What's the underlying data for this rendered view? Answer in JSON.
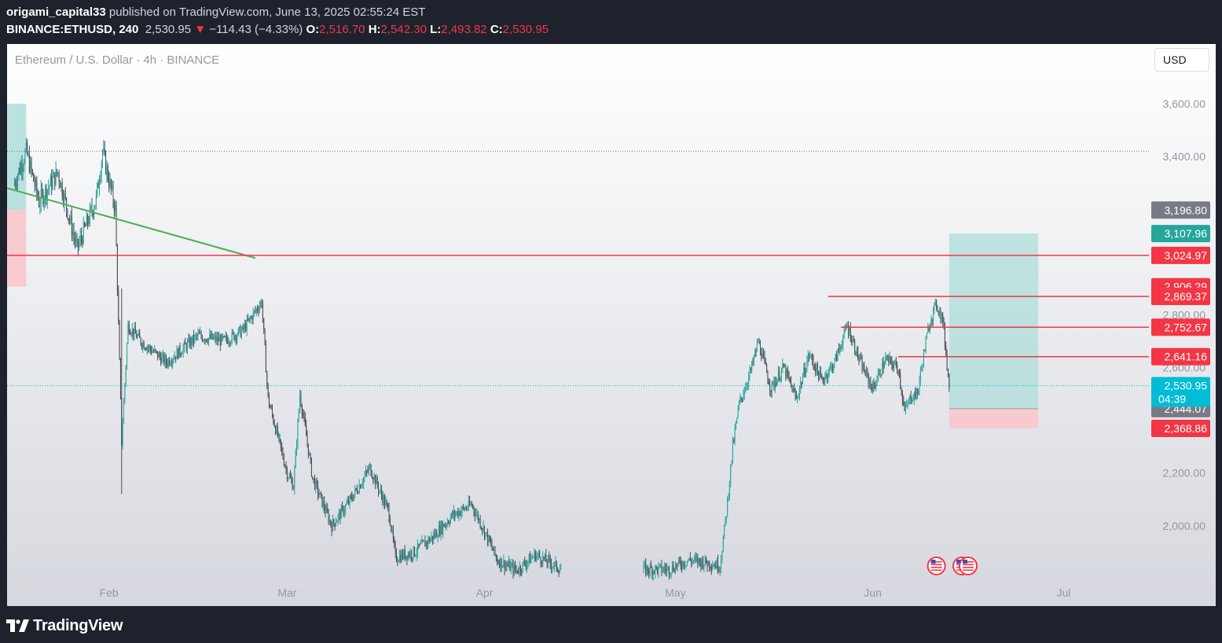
{
  "header": {
    "author": "origami_capital33",
    "published_text": " published on TradingView.com, June 13, 2025 02:55:24 EST",
    "symbol": "BINANCE:ETHUSD, 240",
    "last": "2,530.95",
    "change_arrow": "▼",
    "change": "−114.43 (−4.33%)",
    "open_label": "O:",
    "open": "2,516.70",
    "high_label": "H:",
    "high": "2,542.30",
    "low_label": "L:",
    "low": "2,493.82",
    "close_label": "C:",
    "close": "2,530.95"
  },
  "legend_title": "Ethereum / U.S. Dollar · 4h · BINANCE",
  "currency_button": "USD",
  "footer": {
    "brand": "TradingView",
    "logo_icon": "tradingview-logo-icon"
  },
  "colors": {
    "up": "#26a69a",
    "down": "#4a4d56",
    "trendline": "#4caf50",
    "level": "#f23645",
    "tp_zone": "#b2dfdb",
    "sl_zone": "#f8c7cc",
    "current_price": "#00bcd4",
    "gray_badge": "#787b86"
  },
  "chart_data": {
    "type": "candlestick",
    "symbol": "ETHUSD",
    "interval": "4h",
    "y_axis": {
      "ylim": [
        1820,
        3800
      ],
      "ticks": [
        "3,600.00",
        "3,400.00",
        "2,800.00",
        "2,600.00",
        "2,200.00",
        "2,000.00"
      ]
    },
    "x_axis": {
      "labels": [
        "Feb",
        "Mar",
        "Apr",
        "May",
        "Jun",
        "Jul"
      ]
    },
    "price_path": [
      {
        "date": "2025-01-17",
        "price": 3290
      },
      {
        "date": "2025-01-19",
        "price": 3420
      },
      {
        "date": "2025-01-21",
        "price": 3230
      },
      {
        "date": "2025-01-24",
        "price": 3340
      },
      {
        "date": "2025-01-27",
        "price": 3050
      },
      {
        "date": "2025-01-30",
        "price": 3240
      },
      {
        "date": "2025-01-31",
        "price": 3420
      },
      {
        "date": "2025-02-02",
        "price": 3200
      },
      {
        "date": "2025-02-03",
        "price": 2320
      },
      {
        "date": "2025-02-04",
        "price": 2760
      },
      {
        "date": "2025-02-06",
        "price": 2700
      },
      {
        "date": "2025-02-10",
        "price": 2620
      },
      {
        "date": "2025-02-15",
        "price": 2720
      },
      {
        "date": "2025-02-19",
        "price": 2700
      },
      {
        "date": "2025-02-22",
        "price": 2740
      },
      {
        "date": "2025-02-25",
        "price": 2850
      },
      {
        "date": "2025-02-26",
        "price": 2480
      },
      {
        "date": "2025-03-01",
        "price": 2200
      },
      {
        "date": "2025-03-02",
        "price": 2150
      },
      {
        "date": "2025-03-03",
        "price": 2500
      },
      {
        "date": "2025-03-05",
        "price": 2180
      },
      {
        "date": "2025-03-08",
        "price": 2000
      },
      {
        "date": "2025-03-11",
        "price": 2100
      },
      {
        "date": "2025-03-14",
        "price": 2220
      },
      {
        "date": "2025-03-17",
        "price": 2050
      },
      {
        "date": "2025-03-18",
        "price": 1880
      },
      {
        "date": "2025-03-21",
        "price": 1900
      },
      {
        "date": "2025-03-24",
        "price": 1960
      },
      {
        "date": "2025-03-27",
        "price": 2040
      },
      {
        "date": "2025-03-30",
        "price": 2080
      },
      {
        "date": "2025-04-01",
        "price": 1980
      },
      {
        "date": "2025-04-03",
        "price": 1870
      },
      {
        "date": "2025-04-06",
        "price": 1830
      },
      {
        "date": "2025-04-09",
        "price": 1890
      },
      {
        "date": "2025-04-13",
        "price": 1835
      },
      {
        "date": "2025-04-30",
        "price": 1835
      },
      {
        "date": "2025-05-03",
        "price": 1870
      },
      {
        "date": "2025-05-06",
        "price": 1860
      },
      {
        "date": "2025-05-08",
        "price": 1850
      },
      {
        "date": "2025-05-09",
        "price": 2050
      },
      {
        "date": "2025-05-10",
        "price": 2300
      },
      {
        "date": "2025-05-11",
        "price": 2460
      },
      {
        "date": "2025-05-13",
        "price": 2600
      },
      {
        "date": "2025-05-14",
        "price": 2700
      },
      {
        "date": "2025-05-16",
        "price": 2520
      },
      {
        "date": "2025-05-18",
        "price": 2600
      },
      {
        "date": "2025-05-20",
        "price": 2480
      },
      {
        "date": "2025-05-22",
        "price": 2650
      },
      {
        "date": "2025-05-24",
        "price": 2550
      },
      {
        "date": "2025-05-26",
        "price": 2620
      },
      {
        "date": "2025-05-28",
        "price": 2760
      },
      {
        "date": "2025-05-30",
        "price": 2620
      },
      {
        "date": "2025-06-01",
        "price": 2520
      },
      {
        "date": "2025-06-03",
        "price": 2630
      },
      {
        "date": "2025-06-05",
        "price": 2600
      },
      {
        "date": "2025-06-06",
        "price": 2430
      },
      {
        "date": "2025-06-07",
        "price": 2490
      },
      {
        "date": "2025-06-08",
        "price": 2500
      },
      {
        "date": "2025-06-09",
        "price": 2650
      },
      {
        "date": "2025-06-10",
        "price": 2780
      },
      {
        "date": "2025-06-11",
        "price": 2840
      },
      {
        "date": "2025-06-12",
        "price": 2780
      },
      {
        "date": "2025-06-13",
        "price": 2530.95
      }
    ],
    "last_price": 2530.95,
    "countdown": "04:39",
    "max_marker_price": 3420,
    "trendline": [
      {
        "date": "2025-01-16",
        "price": 3280
      },
      {
        "date": "2025-02-24",
        "price": 3015
      }
    ],
    "horizontal_levels": [
      {
        "price": 3024.97,
        "label": "3,024.97",
        "from": "2025-01-16"
      },
      {
        "price": 2869.37,
        "label": "2,869.37",
        "from": "2025-05-25"
      },
      {
        "price": 2752.67,
        "label": "2,752.67",
        "from": "2025-05-27"
      },
      {
        "price": 2641.16,
        "label": "2,641.16",
        "from": "2025-06-05"
      }
    ],
    "price_badges": [
      {
        "price": 3196.8,
        "label": "3,196.80",
        "kind": "gray"
      },
      {
        "price": 3107.96,
        "label": "3,107.96",
        "kind": "green"
      },
      {
        "price": 2906.29,
        "label": "2,906.29",
        "kind": "red"
      },
      {
        "price": 2444.07,
        "label": "2,444.07",
        "kind": "gray"
      },
      {
        "price": 2368.86,
        "label": "2,368.86",
        "kind": "red"
      }
    ],
    "position_new": {
      "from": "2025-06-13",
      "to": "2025-06-27",
      "entry": 2444.07,
      "target": 3107.96,
      "stop": 2368.86
    },
    "position_old": {
      "from": "2025-01-16",
      "to": "2025-01-19",
      "entry": 3196.8,
      "target": 3600,
      "stop": 2906.29
    },
    "event_icons": [
      {
        "date": "2025-06-11",
        "count": 1
      },
      {
        "date": "2025-06-15",
        "count": 2
      }
    ]
  }
}
